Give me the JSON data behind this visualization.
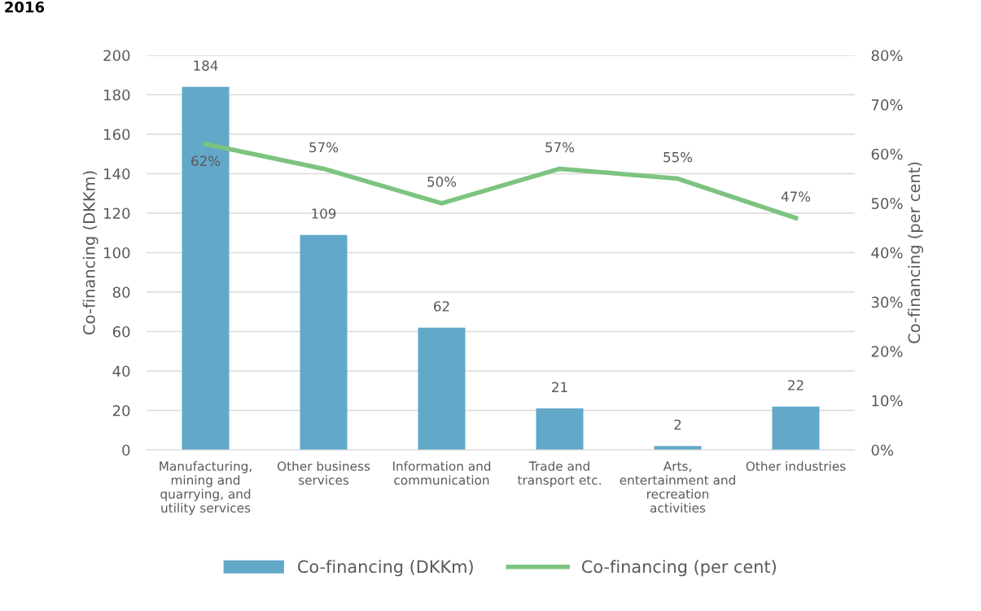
{
  "chart_data": {
    "type": "bar",
    "title": "2016",
    "ylabel": "Co-financing (DKKm)",
    "y2label": "Co-financing (per cent)",
    "categories": [
      "Manufacturing,\nmining and\nquarrying, and\nutility services",
      "Other business\nservices",
      "Information and\ncommunication",
      "Trade and\ntransport etc.",
      "Arts,\nentertainment and\nrecreation\nactivities",
      "Other industries"
    ],
    "series": [
      {
        "name": "Co-financing (DKKm)",
        "color": "#62a8c9",
        "values": [
          184,
          109,
          62,
          21,
          2,
          22
        ],
        "value_labels": [
          "184",
          "109",
          "62",
          "21",
          "2",
          "22"
        ]
      },
      {
        "name": "Co-financing (per cent)",
        "type": "line",
        "axis": "y2",
        "color": "#7cc47f",
        "values": [
          62,
          57,
          50,
          57,
          55,
          47
        ],
        "value_labels": [
          "62%",
          "57%",
          "50%",
          "57%",
          "55%",
          "47%"
        ]
      }
    ],
    "ylim": [
      0,
      200
    ],
    "yticks": [
      0,
      20,
      40,
      60,
      80,
      100,
      120,
      140,
      160,
      180,
      200
    ],
    "y2lim": [
      0,
      80
    ],
    "y2ticks": [
      {
        "value": 0,
        "label": "0%"
      },
      {
        "value": 10,
        "label": "10%"
      },
      {
        "value": 20,
        "label": "20%"
      },
      {
        "value": 30,
        "label": "30%"
      },
      {
        "value": 40,
        "label": "40%"
      },
      {
        "value": 50,
        "label": "50%"
      },
      {
        "value": 60,
        "label": "60%"
      },
      {
        "value": 70,
        "label": "70%"
      },
      {
        "value": 80,
        "label": "80%"
      }
    ],
    "grid": "y",
    "legend": "bottom",
    "marker": "none"
  }
}
